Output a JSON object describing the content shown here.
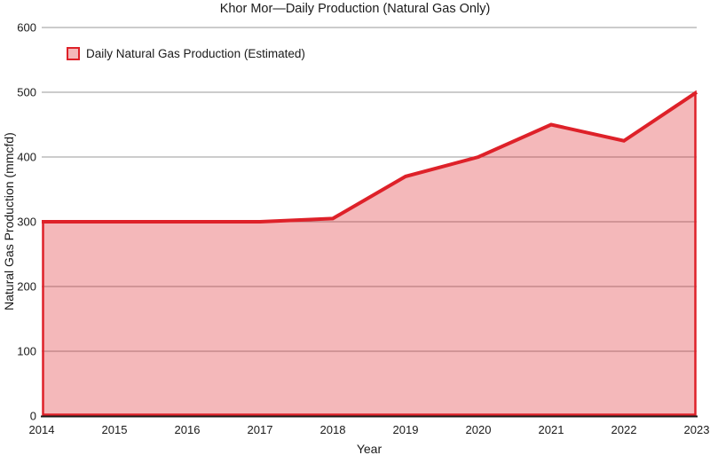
{
  "chart_data": {
    "type": "area",
    "title": "Khor Mor—Daily Production (Natural Gas Only)",
    "xlabel": "Year",
    "ylabel": "Natural Gas Production (mmcfd)",
    "categories": [
      "2014",
      "2015",
      "2016",
      "2017",
      "2018",
      "2019",
      "2020",
      "2021",
      "2022",
      "2023"
    ],
    "series": [
      {
        "name": "Daily Natural Gas Production (Estimated)",
        "values": [
          300,
          300,
          300,
          300,
          305,
          370,
          400,
          450,
          425,
          500
        ]
      }
    ],
    "ylim": [
      0,
      600
    ],
    "yticks": [
      0,
      100,
      200,
      300,
      400,
      500,
      600
    ],
    "grid": true,
    "legend_position": "top-left-inside",
    "colors": {
      "line": "#de2129",
      "fill": "rgba(222,33,41,0.32)",
      "gridline": "#999999",
      "axis": "#1a1a1a",
      "text": "#1a1a1a",
      "background": "#ffffff"
    }
  }
}
